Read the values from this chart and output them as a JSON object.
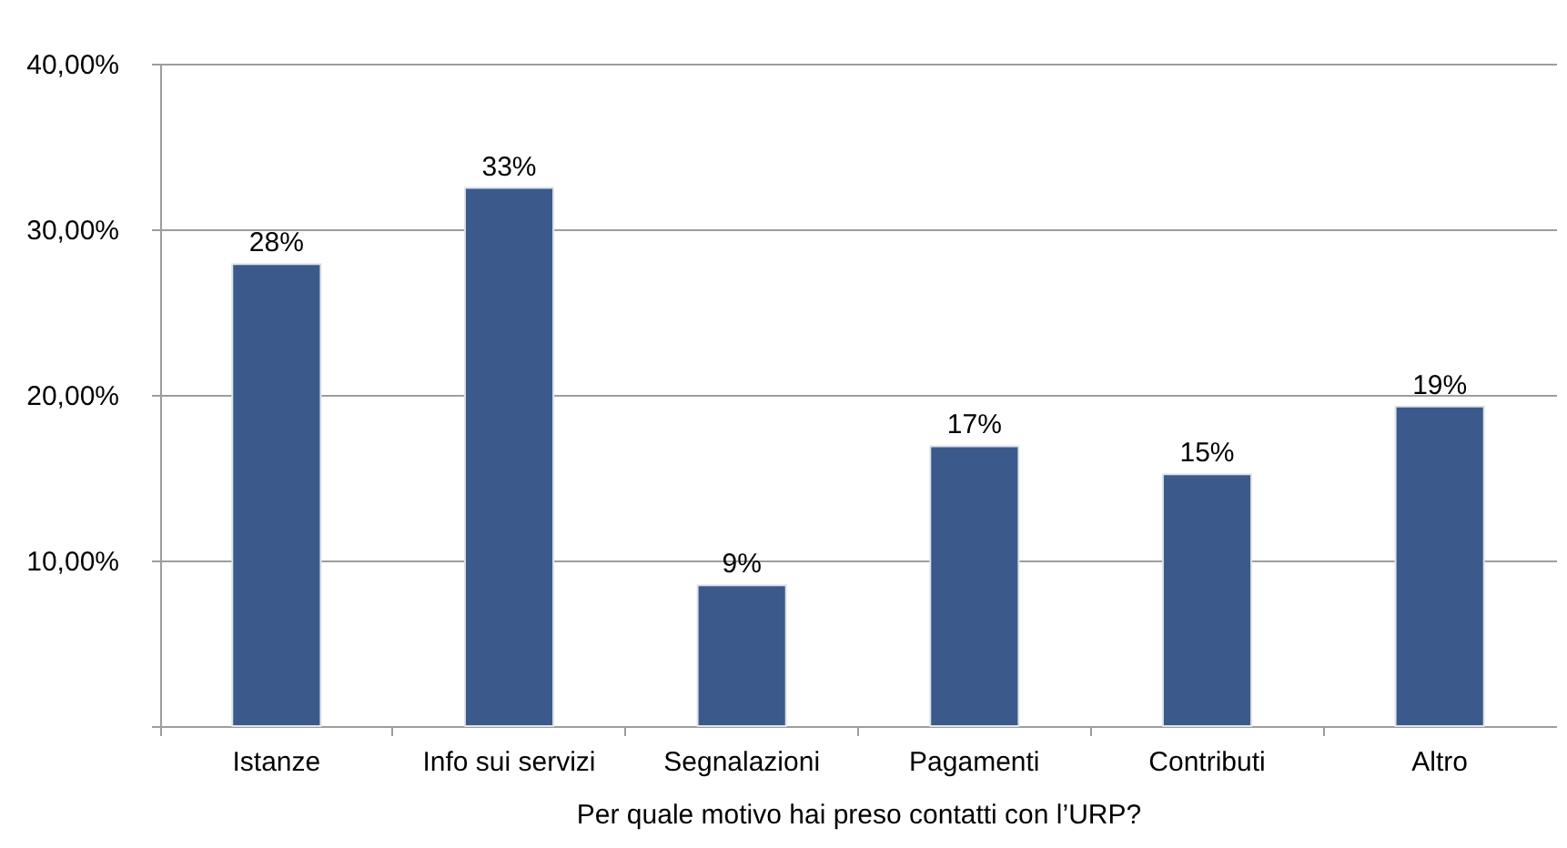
{
  "chart_data": {
    "type": "bar",
    "xlabel": "Per quale motivo hai preso contatti con l’URP?",
    "categories": [
      "Istanze",
      "Info sui servizi",
      "Segnalazioni",
      "Pagamenti",
      "Contributi",
      "Altro"
    ],
    "values": [
      27.9,
      32.5,
      8.5,
      16.9,
      15.2,
      19.3
    ],
    "color": "#3b5a8b",
    "value_labels": [
      "28%",
      "33%",
      "9%",
      "17%",
      "15%",
      "19%"
    ],
    "ylim": [
      0,
      40
    ],
    "yticks": [
      {
        "value": 0,
        "label": null
      },
      {
        "value": 10,
        "label": "10,00%"
      },
      {
        "value": 20,
        "label": "20,00%"
      },
      {
        "value": 30,
        "label": "30,00%"
      },
      {
        "value": 40,
        "label": "40,00%"
      }
    ],
    "grid": "y"
  }
}
